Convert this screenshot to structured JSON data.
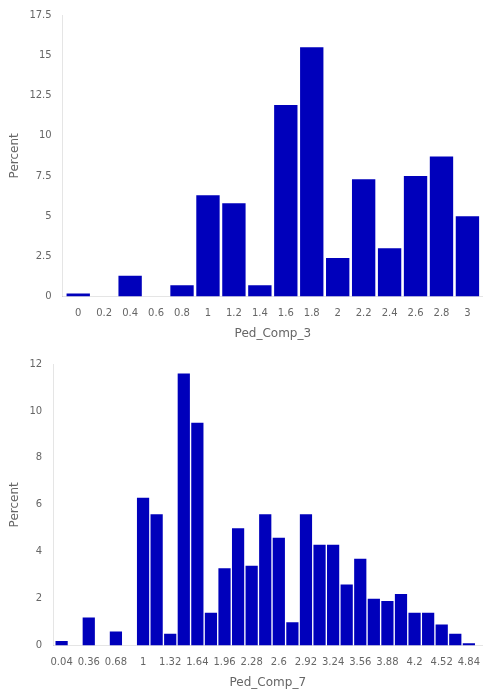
{
  "chart_data": [
    {
      "type": "bar",
      "xlabel": "Ped_Comp_3",
      "ylabel": "Percent",
      "x": [
        0.0,
        0.2,
        0.4,
        0.6,
        0.8,
        1.0,
        1.2,
        1.4,
        1.6,
        1.8,
        2.0,
        2.2,
        2.4,
        2.6,
        2.8,
        3.0
      ],
      "values": [
        0.2,
        0.0,
        1.3,
        0.0,
        0.7,
        6.3,
        5.8,
        0.7,
        11.9,
        15.5,
        2.4,
        7.3,
        3.0,
        7.5,
        8.7,
        5.0
      ],
      "color": "#0000bb",
      "xlim": [
        -0.12,
        3.12
      ],
      "xticks": [
        0,
        0.2,
        0.4,
        0.6,
        0.8,
        1,
        1.2,
        1.4,
        1.6,
        1.8,
        2,
        2.2,
        2.4,
        2.6,
        2.8,
        3
      ],
      "ylim": [
        0,
        17.5
      ],
      "yticks": [
        0,
        2.5,
        5,
        7.5,
        10,
        12.5,
        15,
        17.5
      ],
      "grid": false
    },
    {
      "type": "bar",
      "xlabel": "Ped_Comp_7",
      "ylabel": "Percent",
      "x": [
        0.04,
        0.2,
        0.36,
        0.52,
        0.68,
        0.84,
        1.0,
        1.16,
        1.32,
        1.48,
        1.64,
        1.8,
        1.96,
        2.12,
        2.28,
        2.44,
        2.6,
        2.76,
        2.92,
        3.08,
        3.24,
        3.4,
        3.56,
        3.72,
        3.88,
        4.04,
        4.2,
        4.36,
        4.52,
        4.68,
        4.84
      ],
      "values": [
        0.2,
        0.0,
        1.2,
        0.0,
        0.6,
        0.0,
        6.3,
        5.6,
        0.5,
        11.6,
        9.5,
        1.4,
        3.3,
        5.0,
        3.4,
        5.6,
        4.6,
        1.0,
        5.6,
        4.3,
        4.3,
        2.6,
        3.7,
        2.0,
        1.9,
        2.2,
        1.4,
        1.4,
        0.9,
        0.5,
        0.1
      ],
      "color": "#0000bb",
      "xlim": [
        -0.06,
        5.0
      ],
      "xticks": [
        0.04,
        0.36,
        0.68,
        1,
        1.32,
        1.64,
        1.96,
        2.28,
        2.6,
        2.92,
        3.24,
        3.56,
        3.88,
        4.2,
        4.52,
        4.84
      ],
      "ylim": [
        0,
        12
      ],
      "yticks": [
        0,
        2,
        4,
        6,
        8,
        10,
        12
      ],
      "grid": false
    }
  ]
}
